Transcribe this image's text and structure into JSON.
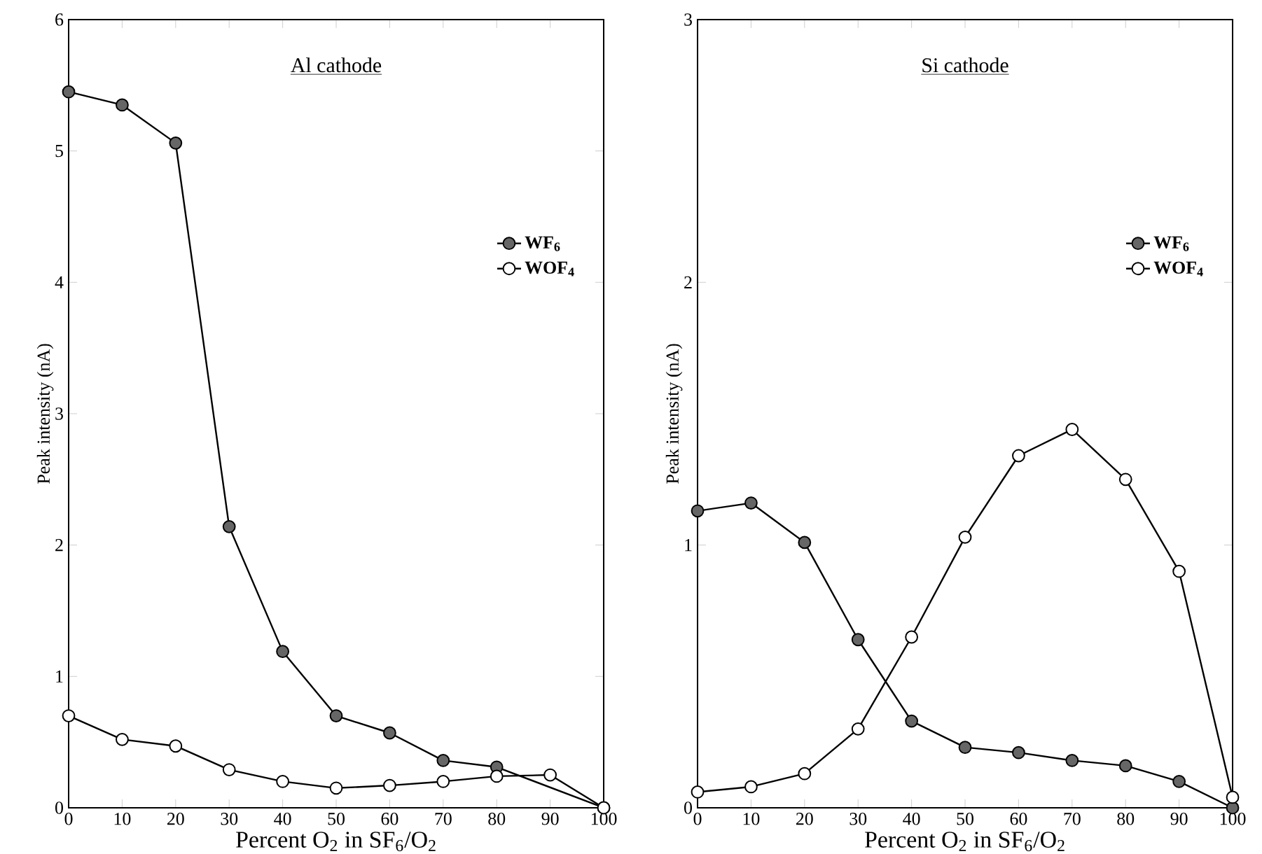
{
  "chart_data": [
    {
      "type": "line",
      "title": "Al cathode",
      "xlabel": "Percent O$_{2}$ in SF$_{6}$/O$_{2}$",
      "ylabel": "Peak intensity (nA)",
      "x": [
        0,
        10,
        20,
        30,
        40,
        50,
        60,
        70,
        80,
        90,
        100
      ],
      "xlim": [
        0,
        100
      ],
      "ylim": [
        0,
        6
      ],
      "xticks": [
        0,
        10,
        20,
        30,
        40,
        50,
        60,
        70,
        80,
        90,
        100
      ],
      "yticks": [
        0,
        1,
        2,
        3,
        4,
        5,
        6
      ],
      "legend": "right",
      "marker": "circle",
      "line_style": "solid",
      "series": [
        {
          "name": "WF$_{6}$",
          "color": "#666666",
          "values": [
            5.45,
            5.35,
            5.06,
            2.14,
            1.19,
            0.7,
            0.57,
            0.36,
            0.31,
            null,
            0
          ]
        },
        {
          "name": "WOF$_{4}$",
          "color": "#ffffff",
          "values": [
            0.7,
            0.52,
            0.47,
            0.29,
            0.2,
            0.15,
            0.17,
            0.2,
            0.24,
            0.25,
            0
          ]
        }
      ]
    },
    {
      "type": "line",
      "title": "Si cathode",
      "xlabel": "Percent O$_{2}$ in SF$_{6}$/O$_{2}$",
      "ylabel": "Peak intensity (nA)",
      "x": [
        0,
        10,
        20,
        30,
        40,
        50,
        60,
        70,
        80,
        90,
        100
      ],
      "xlim": [
        0,
        100
      ],
      "ylim": [
        0,
        3
      ],
      "xticks": [
        0,
        10,
        20,
        30,
        40,
        50,
        60,
        70,
        80,
        90,
        100
      ],
      "yticks": [
        0,
        1,
        2,
        3
      ],
      "legend": "right",
      "marker": "circle",
      "line_style": "solid",
      "series": [
        {
          "name": "WF$_{6}$",
          "color": "#666666",
          "values": [
            1.13,
            1.16,
            1.01,
            0.64,
            0.33,
            0.23,
            0.21,
            0.18,
            0.16,
            0.1,
            0
          ]
        },
        {
          "name": "WOF$_{4}$",
          "color": "#ffffff",
          "values": [
            0.06,
            0.08,
            0.13,
            0.3,
            0.65,
            1.03,
            1.34,
            1.44,
            1.25,
            0.9,
            0.04
          ]
        }
      ]
    }
  ]
}
